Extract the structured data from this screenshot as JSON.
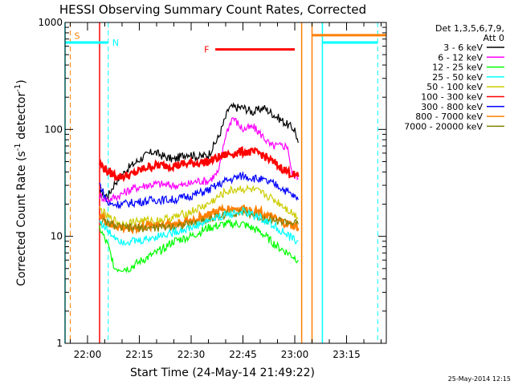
{
  "chart_data": {
    "type": "line",
    "title": "HESSI Observing Summary Count Rates, Corrected",
    "xlabel": "Start Time (24-May-14 21:49:22)",
    "ylabel_main": "Corrected Count Rate (s",
    "ylabel_sup1": "-1",
    "ylabel_mid": " detector",
    "ylabel_sup2": "-1",
    "ylabel_end": ")",
    "y_scale": "log",
    "ylim": [
      1,
      1000
    ],
    "y_ticks": [
      {
        "value": 1,
        "label": "1"
      },
      {
        "value": 10,
        "label": "10"
      },
      {
        "value": 100,
        "label": "100"
      },
      {
        "value": 1000,
        "label": "1000"
      }
    ],
    "x_range_minutes": [
      "21:53.5",
      "23:26.5"
    ],
    "x_ticks": [
      {
        "time": "22:00",
        "label": "22:00"
      },
      {
        "time": "22:15",
        "label": "22:15"
      },
      {
        "time": "22:30",
        "label": "22:30"
      },
      {
        "time": "22:45",
        "label": "22:45"
      },
      {
        "time": "23:00",
        "label": "23:00"
      },
      {
        "time": "23:15",
        "label": "23:15"
      }
    ],
    "legend": {
      "placement": "right",
      "header1": "Det 1,3,5,6,7,9,",
      "header2": "Att 0",
      "entries": [
        {
          "label": "3 - 6 keV",
          "color": "#000000"
        },
        {
          "label": "6 - 12 keV",
          "color": "#ff00ff"
        },
        {
          "label": "12 - 25 keV",
          "color": "#00ff00"
        },
        {
          "label": "25 - 50 keV",
          "color": "#00ffff"
        },
        {
          "label": "50 - 100 keV",
          "color": "#cccc00"
        },
        {
          "label": "100 - 300 keV",
          "color": "#ff0000"
        },
        {
          "label": "300 - 800 keV",
          "color": "#0000ff"
        },
        {
          "label": "800 - 7000 keV",
          "color": "#ff8000"
        },
        {
          "label": "7000 - 20000 keV",
          "color": "#808000"
        }
      ]
    },
    "series": [
      {
        "name": "3 - 6 keV",
        "color": "#000000",
        "points": [
          [
            "22:03.5",
            25
          ],
          [
            "22:06",
            24
          ],
          [
            "22:08",
            32
          ],
          [
            "22:12",
            44
          ],
          [
            "22:16",
            55
          ],
          [
            "22:19",
            62
          ],
          [
            "22:22",
            56
          ],
          [
            "22:25",
            52
          ],
          [
            "22:29",
            60
          ],
          [
            "22:32",
            55
          ],
          [
            "22:35",
            58
          ],
          [
            "22:38",
            85
          ],
          [
            "22:41",
            160
          ],
          [
            "22:45",
            160
          ],
          [
            "22:48",
            145
          ],
          [
            "22:51",
            160
          ],
          [
            "22:55",
            130
          ],
          [
            "22:58",
            110
          ],
          [
            "23:00",
            100
          ],
          [
            "23:01",
            75
          ]
        ]
      },
      {
        "name": "6 - 12 keV",
        "color": "#ff00ff",
        "points": [
          [
            "22:03.5",
            24
          ],
          [
            "22:06",
            22
          ],
          [
            "22:09",
            24
          ],
          [
            "22:13",
            28
          ],
          [
            "22:17",
            30
          ],
          [
            "22:20",
            31
          ],
          [
            "22:24",
            30
          ],
          [
            "22:28",
            30
          ],
          [
            "22:32",
            33
          ],
          [
            "22:35",
            33
          ],
          [
            "22:38",
            40
          ],
          [
            "22:40",
            90
          ],
          [
            "22:42",
            130
          ],
          [
            "22:45",
            100
          ],
          [
            "22:48",
            105
          ],
          [
            "22:51",
            85
          ],
          [
            "22:53",
            70
          ],
          [
            "22:56",
            70
          ],
          [
            "22:58",
            70
          ],
          [
            "22:59",
            40
          ],
          [
            "23:01",
            35
          ]
        ]
      },
      {
        "name": "100 - 300 keV",
        "color": "#ff0000",
        "points": [
          [
            "22:03.5",
            48
          ],
          [
            "22:06",
            40
          ],
          [
            "22:09",
            36
          ],
          [
            "22:13",
            38
          ],
          [
            "22:17",
            44
          ],
          [
            "22:20",
            46
          ],
          [
            "22:25",
            46
          ],
          [
            "22:30",
            48
          ],
          [
            "22:35",
            50
          ],
          [
            "22:40",
            58
          ],
          [
            "22:45",
            62
          ],
          [
            "22:50",
            60
          ],
          [
            "22:55",
            46
          ],
          [
            "22:58",
            40
          ],
          [
            "23:01",
            36
          ]
        ]
      },
      {
        "name": "300 - 800 keV",
        "color": "#0000ff",
        "points": [
          [
            "22:03.5",
            31
          ],
          [
            "22:06",
            20
          ],
          [
            "22:10",
            20
          ],
          [
            "22:15",
            21
          ],
          [
            "22:20",
            22
          ],
          [
            "22:25",
            22
          ],
          [
            "22:30",
            24
          ],
          [
            "22:35",
            27
          ],
          [
            "22:40",
            33
          ],
          [
            "22:45",
            37
          ],
          [
            "22:50",
            34
          ],
          [
            "22:55",
            30
          ],
          [
            "22:58",
            26
          ],
          [
            "23:01",
            22
          ]
        ]
      },
      {
        "name": "50 - 100 keV",
        "color": "#cccc00",
        "points": [
          [
            "22:03.5",
            18
          ],
          [
            "22:06",
            15
          ],
          [
            "22:10",
            13
          ],
          [
            "22:15",
            14
          ],
          [
            "22:20",
            14
          ],
          [
            "22:25",
            15
          ],
          [
            "22:30",
            17
          ],
          [
            "22:35",
            20
          ],
          [
            "22:40",
            26
          ],
          [
            "22:44",
            28
          ],
          [
            "22:48",
            27
          ],
          [
            "22:52",
            24
          ],
          [
            "22:56",
            20
          ],
          [
            "23:01",
            15
          ]
        ]
      },
      {
        "name": "800 - 7000 keV",
        "color": "#ff8000",
        "points": [
          [
            "22:03.5",
            16
          ],
          [
            "22:06",
            13
          ],
          [
            "22:10",
            12
          ],
          [
            "22:15",
            12
          ],
          [
            "22:20",
            13
          ],
          [
            "22:25",
            13
          ],
          [
            "22:30",
            14
          ],
          [
            "22:35",
            16
          ],
          [
            "22:40",
            18
          ],
          [
            "22:45",
            18
          ],
          [
            "22:50",
            17
          ],
          [
            "22:55",
            14
          ],
          [
            "22:58",
            13
          ],
          [
            "23:01",
            12
          ]
        ]
      },
      {
        "name": "7000 - 20000 keV",
        "color": "#808000",
        "points": [
          [
            "22:03.5",
            14
          ],
          [
            "22:10",
            12
          ],
          [
            "22:20",
            12
          ],
          [
            "22:30",
            13
          ],
          [
            "22:40",
            16
          ],
          [
            "22:45",
            17
          ],
          [
            "22:50",
            15
          ],
          [
            "22:55",
            14
          ],
          [
            "23:01",
            13
          ]
        ]
      },
      {
        "name": "25 - 50 keV",
        "color": "#00ffff",
        "points": [
          [
            "22:03.5",
            14
          ],
          [
            "22:06",
            11
          ],
          [
            "22:10",
            9
          ],
          [
            "22:15",
            9
          ],
          [
            "22:20",
            10
          ],
          [
            "22:25",
            11
          ],
          [
            "22:30",
            12
          ],
          [
            "22:35",
            14
          ],
          [
            "22:40",
            16
          ],
          [
            "22:45",
            17
          ],
          [
            "22:50",
            15
          ],
          [
            "22:55",
            12
          ],
          [
            "22:58",
            10
          ],
          [
            "23:01",
            9
          ]
        ]
      },
      {
        "name": "12 - 25 keV",
        "color": "#00ff00",
        "points": [
          [
            "22:03.5",
            12
          ],
          [
            "22:06",
            8
          ],
          [
            "22:08",
            5
          ],
          [
            "22:12",
            5
          ],
          [
            "22:16",
            6
          ],
          [
            "22:20",
            7
          ],
          [
            "22:25",
            9
          ],
          [
            "22:30",
            10
          ],
          [
            "22:35",
            12
          ],
          [
            "22:40",
            13
          ],
          [
            "22:45",
            13
          ],
          [
            "22:50",
            11
          ],
          [
            "22:55",
            8
          ],
          [
            "22:58",
            7
          ],
          [
            "23:01",
            6
          ]
        ]
      }
    ],
    "markers": [
      {
        "label": "S",
        "color": "#ff8000",
        "time": "21:55",
        "style": "dashed-vertical",
        "level": 750
      },
      {
        "label": "N",
        "color": "#00ffff",
        "time": "22:06",
        "style": "dashed-vertical",
        "level": 650
      },
      {
        "label": "F",
        "color": "#ff0000",
        "level": 560,
        "from": "22:37",
        "to": "23:00"
      }
    ],
    "night_bars": [
      {
        "color": "#00ffff",
        "from": "21:53.5",
        "to": "22:06",
        "level": 650
      },
      {
        "color": "#00ffff",
        "from": "23:08",
        "to": "23:24",
        "level": 650
      },
      {
        "color": "#ff8000",
        "from": "23:05",
        "to": "23:26.5",
        "level": 760
      }
    ],
    "footer": "25-May-2014 12:15"
  }
}
